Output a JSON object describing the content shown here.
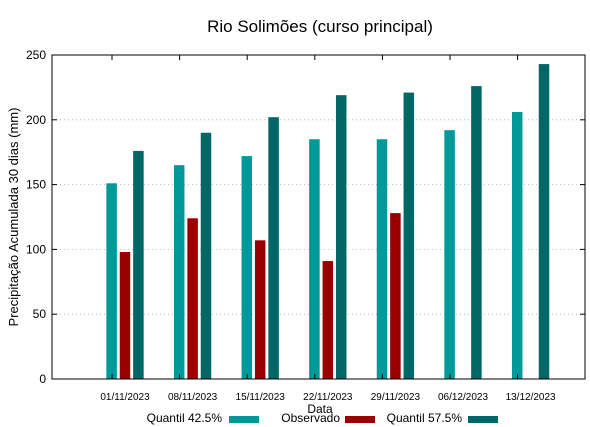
{
  "chart_data": {
    "type": "bar",
    "title": "Rio Solimões (curso principal)",
    "xlabel": "Data",
    "ylabel": "Precipitação Acumulada 30 dias (mm)",
    "ylim": [
      0,
      250
    ],
    "yticks": [
      0,
      50,
      100,
      150,
      200,
      250
    ],
    "grid": true,
    "legend_position": "bottom",
    "categories": [
      "01/11/2023",
      "08/11/2023",
      "15/11/2023",
      "22/11/2023",
      "29/11/2023",
      "06/12/2023",
      "13/12/2023"
    ],
    "series": [
      {
        "name": "Quantil 42.5%",
        "color": "#009999",
        "values": [
          151,
          165,
          172,
          185,
          185,
          192,
          206
        ]
      },
      {
        "name": "Observado",
        "color": "#990000",
        "values": [
          98,
          124,
          107,
          91,
          128,
          null,
          null
        ]
      },
      {
        "name": "Quantil 57.5%",
        "color": "#006666",
        "values": [
          176,
          190,
          202,
          219,
          221,
          226,
          243
        ]
      }
    ]
  }
}
